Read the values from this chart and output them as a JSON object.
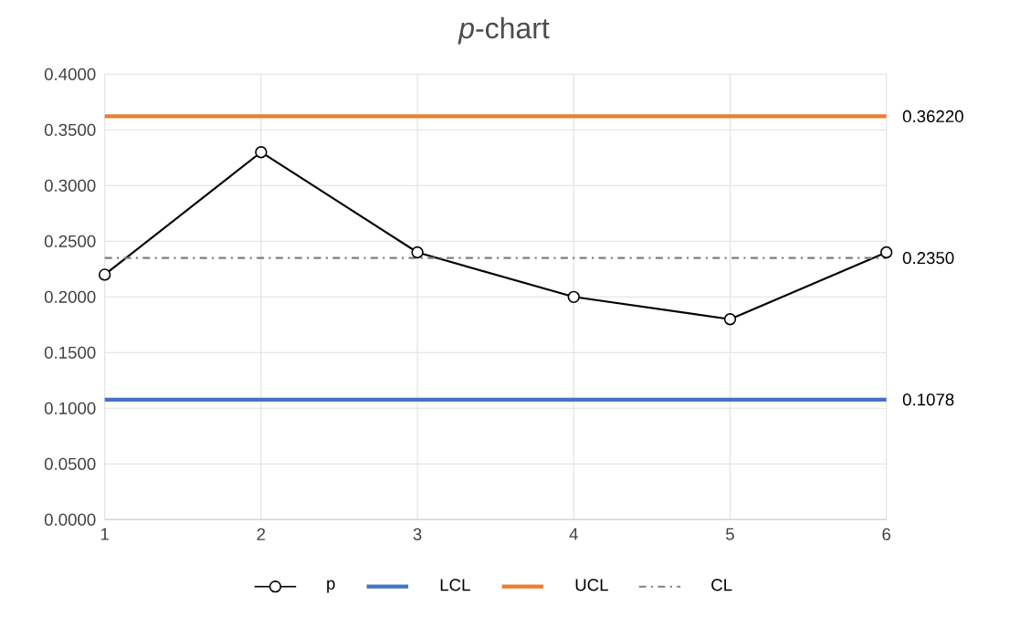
{
  "chart_data": {
    "type": "line",
    "title": "*p*-chart",
    "x": [
      1,
      2,
      3,
      4,
      5,
      6
    ],
    "series": [
      {
        "name": "p",
        "color": "#000000",
        "marker": "circle",
        "values": [
          0.22,
          0.33,
          0.24,
          0.2,
          0.18,
          0.24
        ]
      },
      {
        "name": "LCL",
        "color": "#4472c4",
        "values": [
          0.1078,
          0.1078,
          0.1078,
          0.1078,
          0.1078,
          0.1078
        ],
        "value_labels": [
          null,
          null,
          null,
          null,
          null,
          "0.1078"
        ]
      },
      {
        "name": "UCL",
        "color": "#ed7d31",
        "values": [
          0.3622,
          0.3622,
          0.3622,
          0.3622,
          0.3622,
          0.3622
        ],
        "value_labels": [
          null,
          null,
          null,
          null,
          null,
          "0.36220"
        ]
      },
      {
        "name": "CL",
        "color": "#7f7f7f",
        "line_style": "dashed",
        "values": [
          0.235,
          0.235,
          0.235,
          0.235,
          0.235,
          0.235
        ],
        "value_labels": [
          null,
          null,
          null,
          null,
          null,
          "0.2350"
        ]
      }
    ],
    "xlim": [
      1,
      6
    ],
    "xticks": [
      1,
      2,
      3,
      4,
      5,
      6
    ],
    "ylim": [
      0,
      0.4
    ],
    "yticks": [
      {
        "value": 0,
        "label": "0.0000"
      },
      {
        "value": 0.05,
        "label": "0.0500"
      },
      {
        "value": 0.1,
        "label": "0.1000"
      },
      {
        "value": 0.15,
        "label": "0.1500"
      },
      {
        "value": 0.2,
        "label": "0.2000"
      },
      {
        "value": 0.25,
        "label": "0.2500"
      },
      {
        "value": 0.3,
        "label": "0.3000"
      },
      {
        "value": 0.35,
        "label": "0.3500"
      },
      {
        "value": 0.4,
        "label": "0.4000"
      }
    ],
    "grid": true,
    "legend": "bottom"
  }
}
